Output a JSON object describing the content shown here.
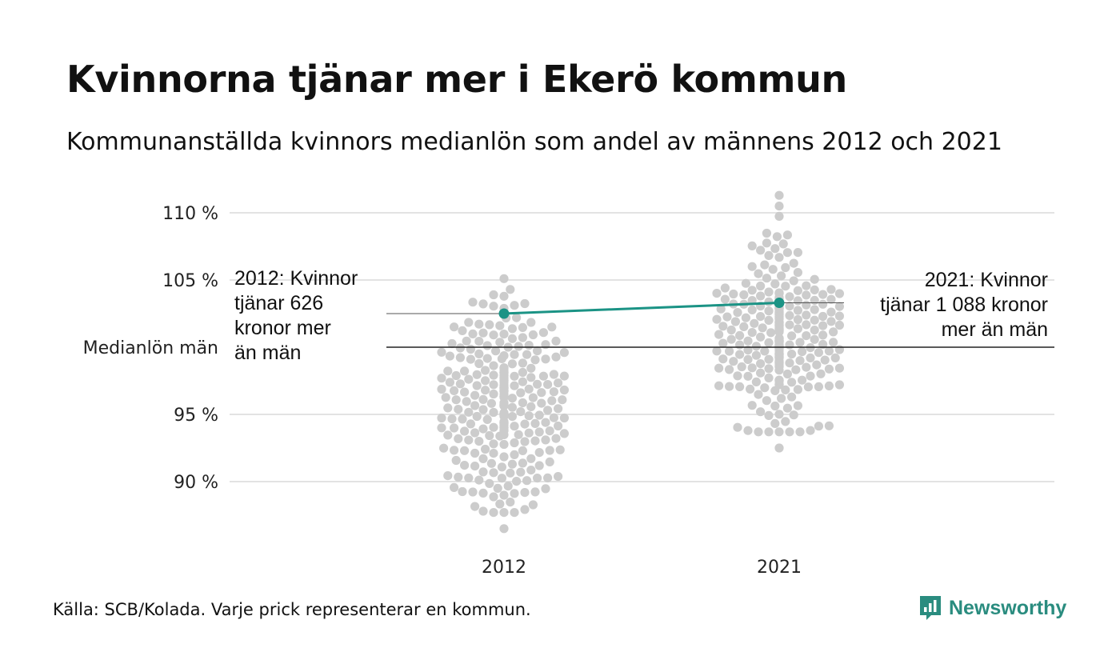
{
  "title": "Kvinnorna tjänar mer i Ekerö kommun",
  "subtitle": "Kommunanställda kvinnors medianlön som andel av männens 2012 och 2021",
  "source": "Källa: SCB/Kolada. Varje prick representerar en kommun.",
  "brand": {
    "name": "Newsworthy",
    "icon": "newsworthy-logo-icon"
  },
  "colors": {
    "dots": "#cccccc",
    "highlight": "#1b9385",
    "grid": "#e3e3e3",
    "reference": "#555555"
  },
  "chart_data": {
    "type": "scatter",
    "subtype": "beeswarm",
    "x_categories": [
      "2012",
      "2021"
    ],
    "y_ticks": [
      {
        "value": 110,
        "label": "110 %"
      },
      {
        "value": 105,
        "label": "105 %"
      },
      {
        "value": 100,
        "label": "Medianlön män"
      },
      {
        "value": 95,
        "label": "95 %"
      },
      {
        "value": 90,
        "label": "90 %"
      }
    ],
    "ylim": [
      86,
      111.5
    ],
    "grid": true,
    "reference_line": {
      "value": 100,
      "label": "Medianlön män"
    },
    "distributions": [
      {
        "category": "2012",
        "min": 86.5,
        "max": 105.1,
        "center": 95.4,
        "spread": 3.4
      },
      {
        "category": "2021",
        "min": 92.5,
        "max": 111.3,
        "center": 100.9,
        "spread": 3.1
      }
    ],
    "highlight": {
      "name": "Ekerö",
      "values": [
        {
          "x": "2012",
          "y": 102.5
        },
        {
          "x": "2021",
          "y": 103.3
        }
      ]
    },
    "annotations": [
      {
        "x": "2012",
        "lines": [
          "2012: Kvinnor",
          "tjänar 626",
          "kronor mer",
          "än män"
        ]
      },
      {
        "x": "2021",
        "lines": [
          "2021: Kvinnor",
          "tjänar 1 088 kronor",
          "mer än män"
        ]
      }
    ]
  }
}
